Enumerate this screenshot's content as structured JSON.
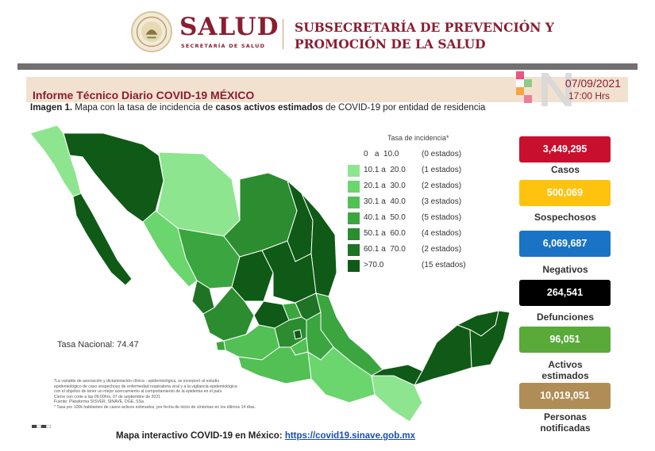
{
  "header": {
    "brand": "SALUD",
    "brand_sub": "SECRETARÍA DE SALUD",
    "subsecretaria_line1": "SUBSECRETARÍA DE PREVENCIÓN Y",
    "subsecretaria_line2": "PROMOCIÓN DE LA SALUD"
  },
  "report": {
    "title": "Informe Técnico Diario COVID-19 MÉXICO",
    "date": "07/09/2021",
    "time": "17:00 Hrs",
    "caption_bold1": "Imagen 1.",
    "caption_text1": " Mapa con la tasa de incidencia de ",
    "caption_bold2": "casos activos estimados",
    "caption_text2": " de COVID-19 por entidad de residencia"
  },
  "legend": {
    "title": "Tasa de incidencia*",
    "items": [
      {
        "range": "0   a  10.0",
        "count": "(0 estados)",
        "color": "#ffffff"
      },
      {
        "range": "10.1 a  20.0",
        "count": "(1 estados)",
        "color": "#8ee58f"
      },
      {
        "range": "20.1 a  30.0",
        "count": "(2 estados)",
        "color": "#6bd56e"
      },
      {
        "range": "30.1 a  40.0",
        "count": "(3 estados)",
        "color": "#52c055"
      },
      {
        "range": "40.1 a  50.0",
        "count": "(5 estados)",
        "color": "#3ba63f"
      },
      {
        "range": "50.1 a  60.0",
        "count": "(4 estados)",
        "color": "#2b8c30"
      },
      {
        "range": "60.1 a  70.0",
        "count": "(2 estados)",
        "color": "#1e7325"
      },
      {
        "range": ">70.0",
        "count": "(15 estados)",
        "color": "#0f5a16"
      }
    ]
  },
  "national_rate": "Tasa Nacional: 74.47",
  "notes": [
    "*La variable de asociación y dictaminación clínica - epidemiológica, se incorporó al estudio",
    "epidemiológico de caso sospechoso de enfermedad respiratoria viral y a la vigilancia epidemiológica",
    "con el objetivo de tener un mejor acercamiento al comportamiento de la epidemia en el país.",
    "Cierre con corte a las 09:00hrs, 07 de septiembre de 2021",
    "Fuente: Plataforma SISVER, SINAVE, DGE, SSa.",
    "* Tasa por 100k habitantes de casos activos estimados, por fecha de inicio de síntomas en los últimos 14 días."
  ],
  "footer": {
    "label": "Mapa interactivo COVID-19 en México: ",
    "link": "https://covid19.sinave.gob.mx"
  },
  "stats": [
    {
      "value": "3,449,295",
      "label": "Casos",
      "color": "#c8102e"
    },
    {
      "value": "500,069",
      "label": "Sospechosos",
      "color": "#ffc20e"
    },
    {
      "value": "6,069,687",
      "label": "Negativos",
      "color": "#1a73c4"
    },
    {
      "value": "264,541",
      "label": "Defunciones",
      "color": "#000000"
    },
    {
      "value": "96,051",
      "label": "Activos estimados",
      "color": "#5aaa3a"
    },
    {
      "value": "10,019,051",
      "label": "Personas notificadas",
      "color": "#b08d57"
    }
  ]
}
